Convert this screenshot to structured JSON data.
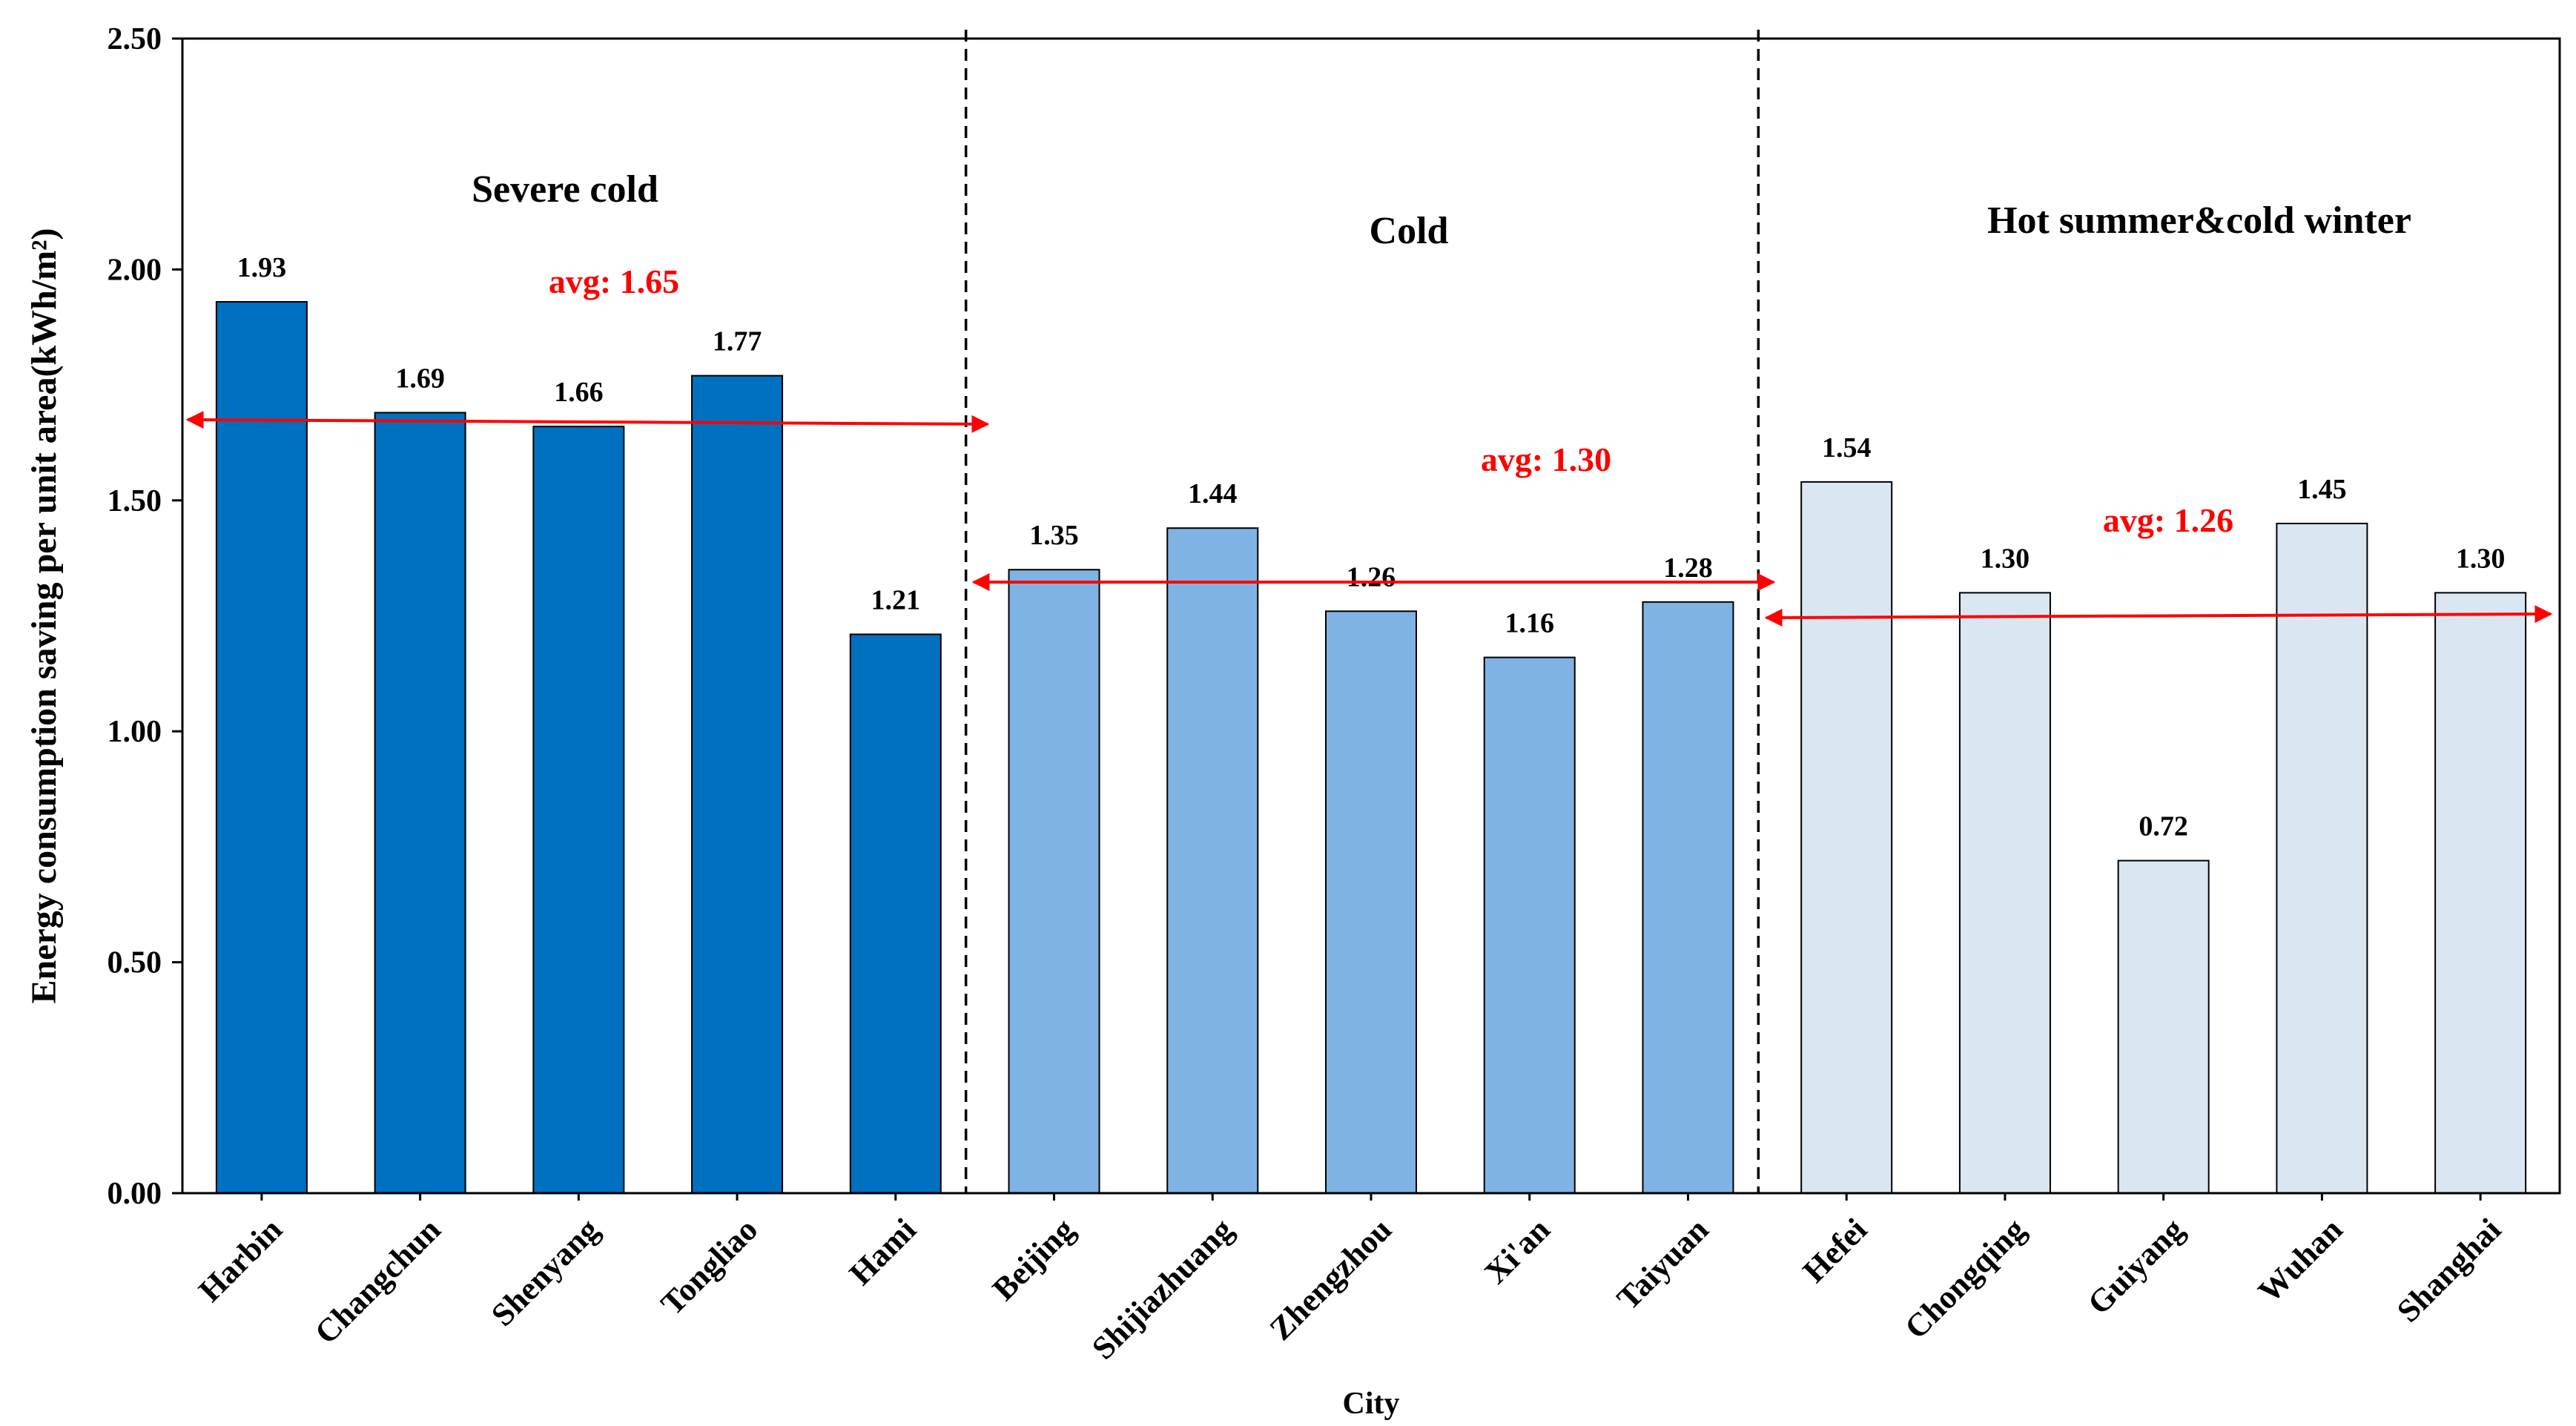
{
  "chart_data": {
    "type": "bar",
    "title": "",
    "xlabel": "City",
    "ylabel": "Energy consumption saving per unit area(kWh/m²)",
    "ylim": [
      0,
      2.5
    ],
    "yticks": [
      "0.00",
      "0.50",
      "1.00",
      "1.50",
      "2.00",
      "2.50"
    ],
    "grid": false,
    "categories": [
      "Harbin",
      "Changchun",
      "Shenyang",
      "Tongliao",
      "Hami",
      "Beijing",
      "Shijiazhuang",
      "Zhengzhou",
      "Xi'an",
      "Taiyuan",
      "Hefei",
      "Chongqing",
      "Guiyang",
      "Wuhan",
      "Shanghai"
    ],
    "values": [
      1.93,
      1.69,
      1.66,
      1.77,
      1.21,
      1.35,
      1.44,
      1.26,
      1.16,
      1.28,
      1.54,
      1.3,
      0.72,
      1.45,
      1.3
    ],
    "value_labels": [
      "1.93",
      "1.69",
      "1.66",
      "1.77",
      "1.21",
      "1.35",
      "1.44",
      "1.26",
      "1.16",
      "1.28",
      "1.54",
      "1.30",
      "0.72",
      "1.45",
      "1.30"
    ],
    "zones": [
      {
        "name": "Severe cold",
        "start": 0,
        "end": 4,
        "color": "#0070C0",
        "avg": 1.65,
        "avg_label": "avg: 1.65"
      },
      {
        "name": "Cold",
        "start": 5,
        "end": 9,
        "color": "#7FB3E3",
        "avg": 1.3,
        "avg_label": "avg: 1.30"
      },
      {
        "name": "Hot summer&cold winter",
        "start": 10,
        "end": 14,
        "color": "#DAE7F3",
        "avg": 1.26,
        "avg_label": "avg: 1.26"
      }
    ],
    "avg_color": "#FF0000"
  }
}
